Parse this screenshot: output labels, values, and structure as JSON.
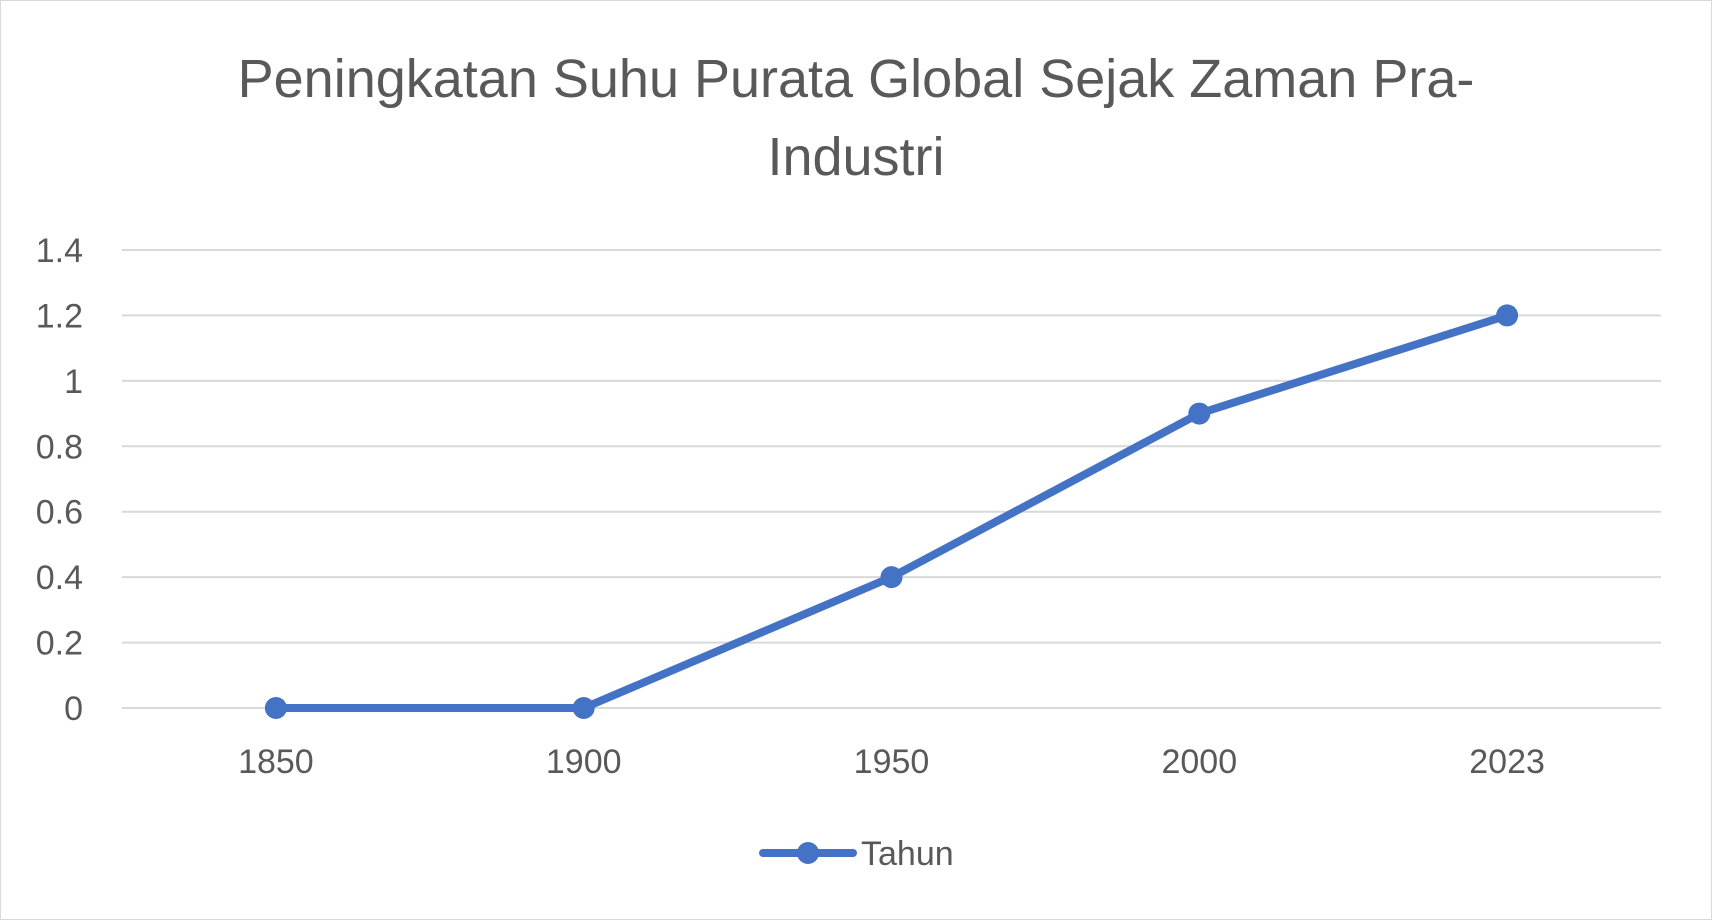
{
  "chart_data": {
    "type": "line",
    "title_lines": [
      "Peningkatan Suhu Purata Global Sejak Zaman Pra-",
      "Industri"
    ],
    "categories": [
      "1850",
      "1900",
      "1950",
      "2000",
      "2023"
    ],
    "series": [
      {
        "name": "Tahun",
        "values": [
          0,
          0,
          0.4,
          0.9,
          1.2
        ],
        "color": "#4472c4"
      }
    ],
    "ylim": [
      0,
      1.4
    ],
    "yticks": [
      0,
      0.2,
      0.4,
      0.6,
      0.8,
      1,
      1.2,
      1.4
    ],
    "ytick_labels": [
      "0",
      "0.2",
      "0.4",
      "0.6",
      "0.8",
      "1",
      "1.2",
      "1.4"
    ],
    "grid": true,
    "legend_position": "bottom",
    "colors": {
      "gridline": "#d9d9d9",
      "text": "#595959",
      "series": "#4472c4"
    }
  }
}
